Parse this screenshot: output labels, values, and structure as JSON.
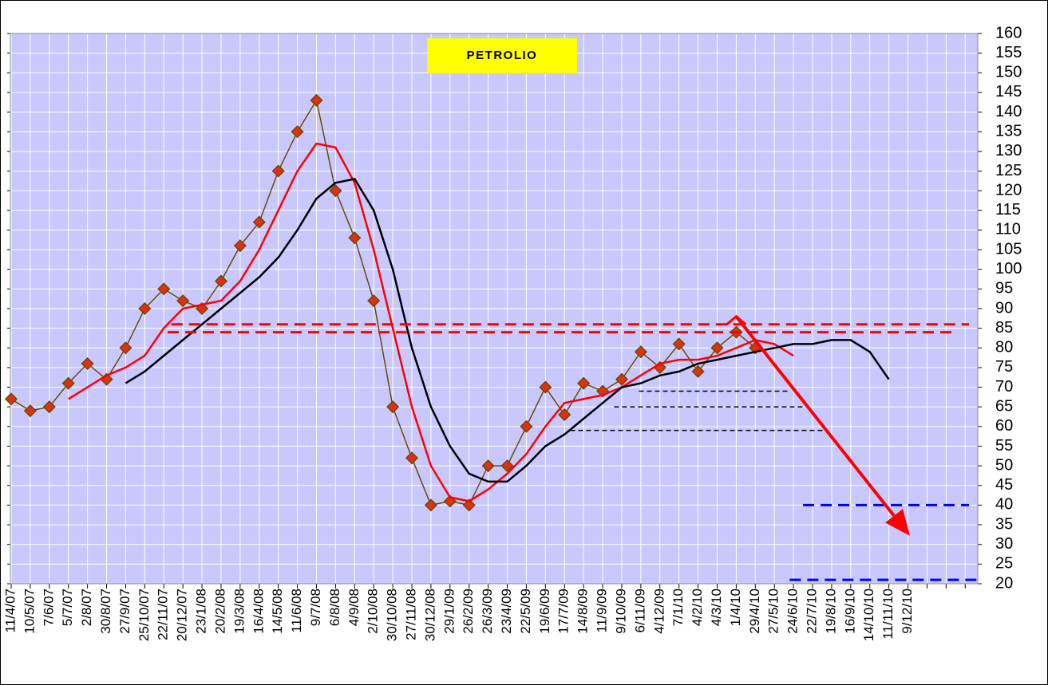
{
  "chart_data": {
    "type": "line",
    "title": "PETROLIO",
    "categories": [
      "11/4/07",
      "10/5/07",
      "7/6/07",
      "5/7/07",
      "2/8/07",
      "30/8/07",
      "27/9/07",
      "25/10/07",
      "22/11/07",
      "20/12/07",
      "23/1/08",
      "20/2/08",
      "19/3/08",
      "16/4/08",
      "14/5/08",
      "11/6/08",
      "9/7/08",
      "6/8/08",
      "4/9/08",
      "2/10/08",
      "30/10/08",
      "27/11/08",
      "30/12/08",
      "29/1/09",
      "26/2/09",
      "26/3/09",
      "23/4/09",
      "22/5/09",
      "19/6/09",
      "17/7/09",
      "14/8/09",
      "11/9/09",
      "9/10/09",
      "6/11/09",
      "4/12/09",
      "7/1/10",
      "4/2/10",
      "4/3/10",
      "1/4/10",
      "29/4/10",
      "27/5/10",
      "24/6/10",
      "22/7/10",
      "19/8/10",
      "16/9/10",
      "14/10/10",
      "11/11/10",
      "9/12/10",
      null,
      null,
      null
    ],
    "series": [
      {
        "color": "#e03010",
        "marker": "diamond",
        "values": [
          67,
          64,
          65,
          71,
          76,
          72,
          80,
          90,
          95,
          92,
          90,
          97,
          106,
          112,
          125,
          135,
          143,
          120,
          108,
          92,
          65,
          52,
          40,
          41,
          40,
          50,
          50,
          60,
          70,
          63,
          71,
          69,
          72,
          79,
          75,
          81,
          74,
          80,
          84,
          80,
          null,
          null,
          null,
          null,
          null,
          null,
          null,
          null,
          null,
          null,
          null
        ]
      },
      {
        "color": "#ff0000",
        "values": [
          null,
          null,
          null,
          67,
          70,
          73,
          75,
          78,
          85,
          90,
          91,
          92,
          97,
          105,
          115,
          125,
          132,
          131,
          122,
          105,
          85,
          65,
          50,
          42,
          41,
          44,
          48,
          53,
          60,
          66,
          67,
          68,
          70,
          73,
          76,
          77,
          77,
          78,
          80,
          82,
          81,
          78,
          null,
          null,
          null,
          null,
          null,
          null,
          null,
          null,
          null
        ]
      },
      {
        "color": "#000000",
        "values": [
          null,
          null,
          null,
          null,
          null,
          null,
          71,
          74,
          78,
          82,
          86,
          90,
          94,
          98,
          103,
          110,
          118,
          122,
          123,
          115,
          100,
          80,
          65,
          55,
          48,
          46,
          46,
          50,
          55,
          58,
          62,
          66,
          70,
          71,
          73,
          74,
          76,
          77,
          78,
          79,
          80,
          81,
          81,
          82,
          82,
          79,
          72,
          null,
          null,
          null,
          null
        ]
      }
    ],
    "reference_lines": [
      {
        "value": 86,
        "color": "#ff0000",
        "start": 8.4,
        "end": 50.2
      },
      {
        "value": 84,
        "color": "#ff0000",
        "start": 8.2,
        "end": 49.4
      },
      {
        "value": 69,
        "color": "#000000",
        "start": 32.9,
        "end": 40.8
      },
      {
        "value": 65,
        "color": "#000000",
        "start": 31.6,
        "end": 41.6
      },
      {
        "value": 59,
        "color": "#000000",
        "start": 29.3,
        "end": 42.7
      },
      {
        "value": 40,
        "color": "#0000ff",
        "start": 41.5,
        "end": 50.2
      },
      {
        "value": 21,
        "color": "#0000ff",
        "start": 40.8,
        "end": 50.7
      }
    ],
    "arrow": {
      "color": "#ff0000",
      "x": [
        38,
        47.1
      ],
      "y": [
        88,
        32.2
      ]
    },
    "ylim": [
      20,
      160
    ],
    "yticks": [
      20,
      25,
      30,
      35,
      40,
      45,
      50,
      55,
      60,
      65,
      70,
      75,
      80,
      85,
      90,
      95,
      100,
      105,
      110,
      115,
      120,
      125,
      130,
      135,
      140,
      145,
      150,
      155,
      160
    ],
    "grid": true,
    "background": "#c8c8ff"
  }
}
